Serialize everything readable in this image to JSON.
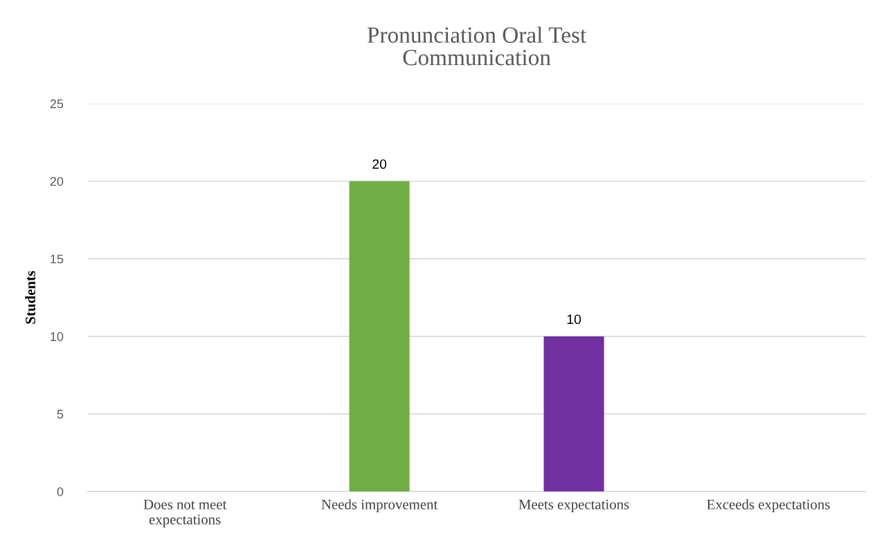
{
  "chart_data": {
    "type": "bar",
    "title": "Pronunciation Oral Test\nCommunication",
    "ylabel": "Students",
    "categories": [
      "Does not meet\nexpectations",
      "Needs improvement",
      "Meets expectations",
      "Exceeds expectations"
    ],
    "values": [
      0,
      20,
      10,
      0
    ],
    "colors": [
      "#4472c4",
      "#70ad47",
      "#7030a0",
      "#ffc000"
    ],
    "value_labels": [
      null,
      "20",
      "10",
      null
    ],
    "ylim": [
      0,
      25
    ],
    "yticks": [
      0,
      5,
      10,
      15,
      20,
      25
    ],
    "grid": "y",
    "legend": false
  }
}
